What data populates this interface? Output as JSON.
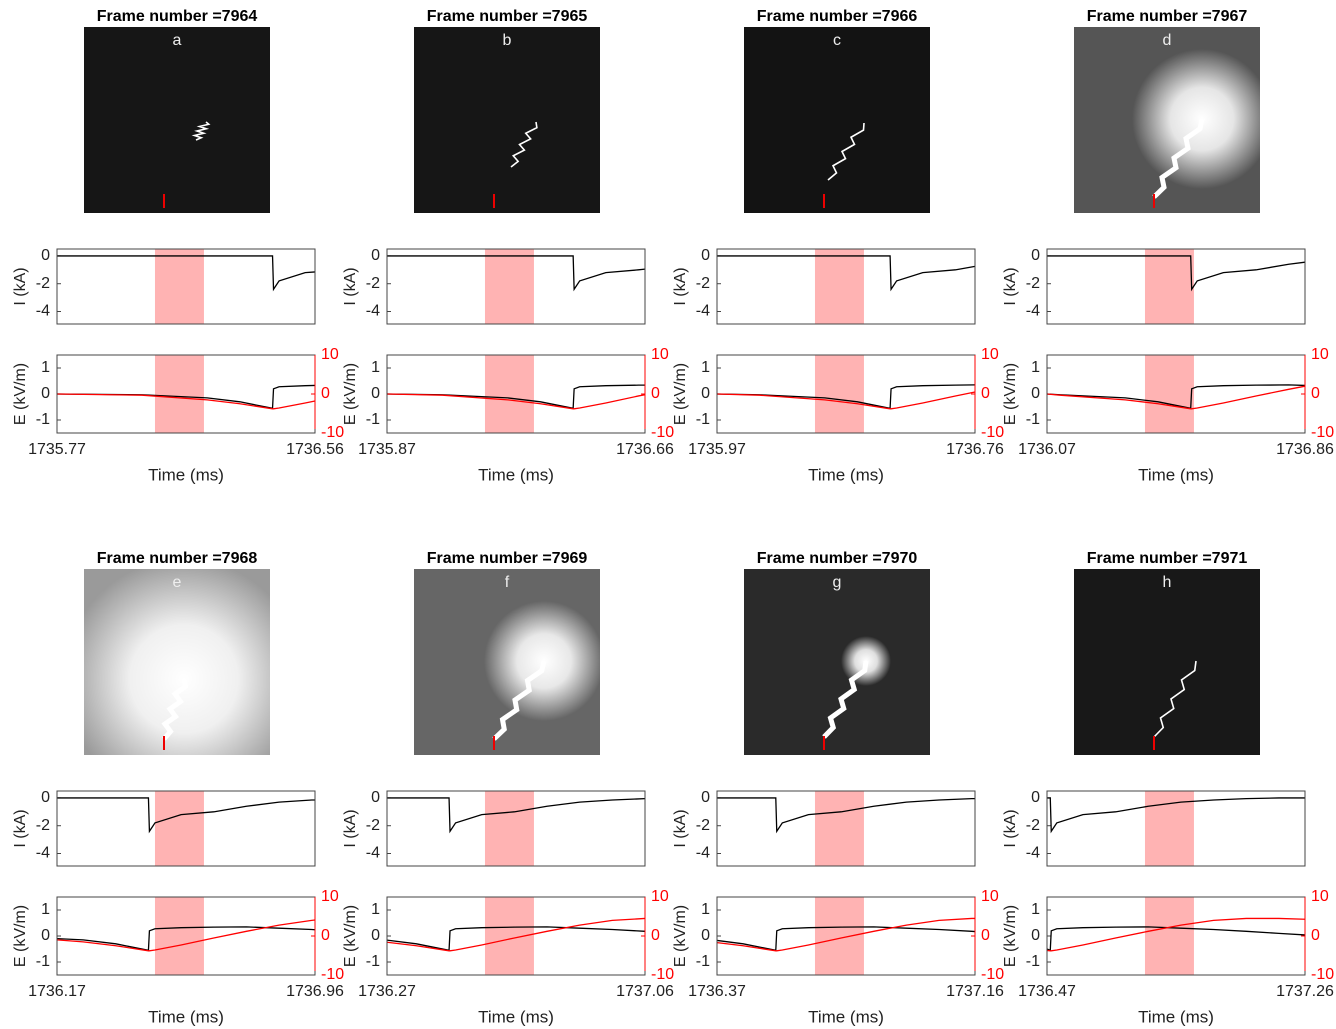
{
  "chart_data": [
    {
      "type": "line",
      "title": "Frame number =7964",
      "label": "a",
      "shade": [
        1736.07,
        1736.22
      ],
      "shade_color": "#ffb3b3",
      "xlim": [
        1735.77,
        1736.56
      ],
      "xticks": [
        1735.77,
        1736.56
      ],
      "xlabel": "Time (ms)",
      "current": {
        "ylabel": "I (kA)",
        "ylim": [
          -4.9,
          0.5
        ],
        "yticks": [
          0,
          -2,
          -4
        ],
        "color": "#000000",
        "x": [
          1735.77,
          1736.03,
          1736.23,
          1736.33,
          1736.43,
          1736.433,
          1736.45,
          1736.53,
          1736.56
        ],
        "values": [
          0,
          0,
          0,
          0,
          0,
          -2.4,
          -1.8,
          -1.2,
          -1.15
        ]
      },
      "field": {
        "ylabel": "E (kV/m)",
        "ylim": [
          -1.5,
          1.5
        ],
        "yticks": [
          -1,
          0,
          1
        ],
        "y2lim": [
          -10,
          10
        ],
        "y2ticks": [
          -10,
          0,
          10
        ],
        "x": [
          1735.77,
          1736.03,
          1736.23,
          1736.33,
          1736.43,
          1736.433,
          1736.45,
          1736.53,
          1736.56
        ],
        "series": [
          {
            "color": "#000000",
            "values": [
              0,
              -0.03,
              -0.15,
              -0.3,
              -0.55,
              0.2,
              0.28,
              0.32,
              0.33
            ]
          },
          {
            "color": "#ff0000",
            "axis": "y2",
            "values": [
              0,
              -0.3,
              -1.5,
              -2.5,
              -3.8,
              -3.8,
              -3.6,
              -2.3,
              -1.8
            ]
          }
        ]
      }
    },
    {
      "type": "line",
      "title": "Frame number =7965",
      "label": "b",
      "shade": [
        1736.17,
        1736.32
      ],
      "shade_color": "#ffb3b3",
      "xlim": [
        1735.87,
        1736.66
      ],
      "xticks": [
        1735.87,
        1736.66
      ],
      "xlabel": "Time (ms)",
      "current": {
        "ylabel": "I (kA)",
        "ylim": [
          -4.9,
          0.5
        ],
        "yticks": [
          0,
          -2,
          -4
        ],
        "color": "#000000",
        "x": [
          1735.87,
          1736.04,
          1736.24,
          1736.34,
          1736.44,
          1736.443,
          1736.46,
          1736.54,
          1736.64,
          1736.66
        ],
        "values": [
          0,
          0,
          0,
          0,
          0,
          -2.4,
          -1.8,
          -1.2,
          -1.0,
          -0.95
        ]
      },
      "field": {
        "ylabel": "E (kV/m)",
        "ylim": [
          -1.5,
          1.5
        ],
        "yticks": [
          -1,
          0,
          1
        ],
        "y2lim": [
          -10,
          10
        ],
        "y2ticks": [
          -10,
          0,
          10
        ],
        "x": [
          1735.87,
          1736.04,
          1736.24,
          1736.34,
          1736.44,
          1736.443,
          1736.46,
          1736.54,
          1736.64,
          1736.66
        ],
        "series": [
          {
            "color": "#000000",
            "values": [
              0,
              -0.03,
              -0.15,
              -0.3,
              -0.55,
              0.2,
              0.28,
              0.32,
              0.34,
              0.34
            ]
          },
          {
            "color": "#ff0000",
            "axis": "y2",
            "values": [
              0,
              -0.3,
              -1.5,
              -2.5,
              -3.8,
              -3.8,
              -3.6,
              -2.3,
              -0.5,
              -0.2
            ]
          }
        ]
      }
    },
    {
      "type": "line",
      "title": "Frame number =7966",
      "label": "c",
      "shade": [
        1736.27,
        1736.42
      ],
      "shade_color": "#ffb3b3",
      "xlim": [
        1735.97,
        1736.76
      ],
      "xticks": [
        1735.97,
        1736.76
      ],
      "xlabel": "Time (ms)",
      "current": {
        "ylabel": "I (kA)",
        "ylim": [
          -4.9,
          0.5
        ],
        "yticks": [
          0,
          -2,
          -4
        ],
        "color": "#000000",
        "x": [
          1735.97,
          1736.1,
          1736.3,
          1736.4,
          1736.5,
          1736.503,
          1736.52,
          1736.6,
          1736.7,
          1736.76
        ],
        "values": [
          0,
          0,
          0,
          0,
          0,
          -2.4,
          -1.8,
          -1.2,
          -1.0,
          -0.75
        ]
      },
      "field": {
        "ylabel": "E (kV/m)",
        "ylim": [
          -1.5,
          1.5
        ],
        "yticks": [
          -1,
          0,
          1
        ],
        "y2lim": [
          -10,
          10
        ],
        "y2ticks": [
          -10,
          0,
          10
        ],
        "x": [
          1735.97,
          1736.1,
          1736.3,
          1736.4,
          1736.5,
          1736.503,
          1736.52,
          1736.6,
          1736.7,
          1736.76
        ],
        "series": [
          {
            "color": "#000000",
            "values": [
              0,
              -0.03,
              -0.15,
              -0.3,
              -0.55,
              0.2,
              0.28,
              0.32,
              0.34,
              0.35
            ]
          },
          {
            "color": "#ff0000",
            "axis": "y2",
            "values": [
              0,
              -0.3,
              -1.5,
              -2.5,
              -3.8,
              -3.8,
              -3.6,
              -2.3,
              -0.5,
              0.5
            ]
          }
        ]
      }
    },
    {
      "type": "line",
      "title": "Frame number =7967",
      "label": "d",
      "shade": [
        1736.37,
        1736.52
      ],
      "shade_color": "#ffb3b3",
      "xlim": [
        1736.07,
        1736.86
      ],
      "xticks": [
        1736.07,
        1736.86
      ],
      "xlabel": "Time (ms)",
      "current": {
        "ylabel": "I (kA)",
        "ylim": [
          -4.9,
          0.5
        ],
        "yticks": [
          0,
          -2,
          -4
        ],
        "color": "#000000",
        "x": [
          1736.07,
          1736.11,
          1736.31,
          1736.41,
          1736.51,
          1736.513,
          1736.53,
          1736.61,
          1736.71,
          1736.81,
          1736.86
        ],
        "values": [
          0,
          0,
          0,
          0,
          0,
          -2.4,
          -1.8,
          -1.2,
          -1.0,
          -0.6,
          -0.45
        ]
      },
      "field": {
        "ylabel": "E (kV/m)",
        "ylim": [
          -1.5,
          1.5
        ],
        "yticks": [
          -1,
          0,
          1
        ],
        "y2lim": [
          -10,
          10
        ],
        "y2ticks": [
          -10,
          0,
          10
        ],
        "x": [
          1736.07,
          1736.11,
          1736.31,
          1736.41,
          1736.51,
          1736.513,
          1736.53,
          1736.61,
          1736.71,
          1736.81,
          1736.86
        ],
        "series": [
          {
            "color": "#000000",
            "values": [
              0,
              -0.03,
              -0.15,
              -0.3,
              -0.55,
              0.2,
              0.28,
              0.32,
              0.34,
              0.35,
              0.33
            ]
          },
          {
            "color": "#ff0000",
            "axis": "y2",
            "values": [
              0,
              -0.3,
              -1.5,
              -2.5,
              -3.8,
              -3.8,
              -3.6,
              -2.3,
              -0.5,
              1.2,
              2
            ]
          }
        ]
      }
    },
    {
      "type": "line",
      "title": "Frame number =7968",
      "label": "e",
      "shade": [
        1736.47,
        1736.62
      ],
      "shade_color": "#ffb3b3",
      "xlim": [
        1736.17,
        1736.96
      ],
      "xticks": [
        1736.17,
        1736.96
      ],
      "xlabel": "Time (ms)",
      "current": {
        "ylabel": "I (kA)",
        "ylim": [
          -4.9,
          0.5
        ],
        "yticks": [
          0,
          -2,
          -4
        ],
        "color": "#000000",
        "x": [
          1736.17,
          1736.25,
          1736.35,
          1736.45,
          1736.453,
          1736.47,
          1736.55,
          1736.65,
          1736.75,
          1736.85,
          1736.95,
          1736.96
        ],
        "values": [
          0,
          0,
          0,
          0,
          -2.4,
          -1.8,
          -1.2,
          -1.0,
          -0.6,
          -0.3,
          -0.15,
          -0.15
        ]
      },
      "field": {
        "ylabel": "E (kV/m)",
        "ylim": [
          -1.5,
          1.5
        ],
        "yticks": [
          -1,
          0,
          1
        ],
        "y2lim": [
          -10,
          10
        ],
        "y2ticks": [
          -10,
          0,
          10
        ],
        "x": [
          1736.17,
          1736.25,
          1736.35,
          1736.45,
          1736.453,
          1736.47,
          1736.55,
          1736.65,
          1736.75,
          1736.85,
          1736.95,
          1736.96
        ],
        "series": [
          {
            "color": "#000000",
            "values": [
              -0.1,
              -0.15,
              -0.3,
              -0.55,
              0.2,
              0.28,
              0.32,
              0.34,
              0.35,
              0.3,
              0.25,
              0.24
            ]
          },
          {
            "color": "#ff0000",
            "axis": "y2",
            "values": [
              -1,
              -1.5,
              -2.5,
              -3.8,
              -3.8,
              -3.6,
              -2.3,
              -0.5,
              1.2,
              2.8,
              4,
              4.1
            ]
          }
        ]
      }
    },
    {
      "type": "line",
      "title": "Frame number =7969",
      "label": "f",
      "shade": [
        1736.57,
        1736.72
      ],
      "shade_color": "#ffb3b3",
      "xlim": [
        1736.27,
        1737.06
      ],
      "xticks": [
        1736.27,
        1737.06
      ],
      "xlabel": "Time (ms)",
      "current": {
        "ylabel": "I (kA)",
        "ylim": [
          -4.9,
          0.5
        ],
        "yticks": [
          0,
          -2,
          -4
        ],
        "color": "#000000",
        "x": [
          1736.27,
          1736.36,
          1736.46,
          1736.463,
          1736.48,
          1736.56,
          1736.66,
          1736.76,
          1736.86,
          1736.96,
          1737.06
        ],
        "values": [
          0,
          0,
          0,
          -2.4,
          -1.8,
          -1.2,
          -1.0,
          -0.6,
          -0.3,
          -0.15,
          -0.05
        ]
      },
      "field": {
        "ylabel": "E (kV/m)",
        "ylim": [
          -1.5,
          1.5
        ],
        "yticks": [
          -1,
          0,
          1
        ],
        "y2lim": [
          -10,
          10
        ],
        "y2ticks": [
          -10,
          0,
          10
        ],
        "x": [
          1736.27,
          1736.36,
          1736.46,
          1736.463,
          1736.48,
          1736.56,
          1736.66,
          1736.76,
          1736.86,
          1736.96,
          1737.06
        ],
        "series": [
          {
            "color": "#000000",
            "values": [
              -0.16,
              -0.3,
              -0.55,
              0.2,
              0.28,
              0.32,
              0.34,
              0.35,
              0.3,
              0.25,
              0.18
            ]
          },
          {
            "color": "#ff0000",
            "axis": "y2",
            "values": [
              -1.6,
              -2.5,
              -3.8,
              -3.8,
              -3.6,
              -2.3,
              -0.5,
              1.2,
              2.8,
              4,
              4.5
            ]
          }
        ]
      }
    },
    {
      "type": "line",
      "title": "Frame number =7970",
      "label": "g",
      "shade": [
        1736.67,
        1736.82
      ],
      "shade_color": "#ffb3b3",
      "xlim": [
        1736.37,
        1737.16
      ],
      "xticks": [
        1736.37,
        1737.16
      ],
      "xlabel": "Time (ms)",
      "current": {
        "ylabel": "I (kA)",
        "ylim": [
          -4.9,
          0.5
        ],
        "yticks": [
          0,
          -2,
          -4
        ],
        "color": "#000000",
        "x": [
          1736.37,
          1736.45,
          1736.55,
          1736.553,
          1736.57,
          1736.65,
          1736.75,
          1736.85,
          1736.95,
          1737.05,
          1737.15,
          1737.16
        ],
        "values": [
          0,
          0,
          0,
          -2.4,
          -1.8,
          -1.2,
          -1.0,
          -0.6,
          -0.3,
          -0.15,
          -0.05,
          -0.05
        ]
      },
      "field": {
        "ylabel": "E (kV/m)",
        "ylim": [
          -1.5,
          1.5
        ],
        "yticks": [
          -1,
          0,
          1
        ],
        "y2lim": [
          -10,
          10
        ],
        "y2ticks": [
          -10,
          0,
          10
        ],
        "x": [
          1736.37,
          1736.45,
          1736.55,
          1736.553,
          1736.57,
          1736.65,
          1736.75,
          1736.85,
          1736.95,
          1737.05,
          1737.15,
          1737.16
        ],
        "series": [
          {
            "color": "#000000",
            "values": [
              -0.17,
              -0.3,
              -0.55,
              0.2,
              0.28,
              0.32,
              0.34,
              0.35,
              0.3,
              0.25,
              0.18,
              0.17
            ]
          },
          {
            "color": "#ff0000",
            "axis": "y2",
            "values": [
              -1.7,
              -2.5,
              -3.8,
              -3.8,
              -3.6,
              -2.3,
              -0.5,
              1.2,
              2.8,
              4,
              4.5,
              4.5
            ]
          }
        ]
      }
    },
    {
      "type": "line",
      "title": "Frame number =7971",
      "label": "h",
      "shade": [
        1736.77,
        1736.92
      ],
      "shade_color": "#ffb3b3",
      "xlim": [
        1736.47,
        1737.26
      ],
      "xticks": [
        1736.47,
        1737.26
      ],
      "xlabel": "Time (ms)",
      "current": {
        "ylabel": "I (kA)",
        "ylim": [
          -4.9,
          0.5
        ],
        "yticks": [
          0,
          -2,
          -4
        ],
        "color": "#000000",
        "x": [
          1736.47,
          1736.48,
          1736.483,
          1736.5,
          1736.58,
          1736.68,
          1736.78,
          1736.88,
          1736.98,
          1737.08,
          1737.18,
          1737.26
        ],
        "values": [
          0,
          0,
          -2.4,
          -1.8,
          -1.2,
          -1.0,
          -0.6,
          -0.3,
          -0.15,
          -0.05,
          0,
          0
        ]
      },
      "field": {
        "ylabel": "E (kV/m)",
        "ylim": [
          -1.5,
          1.5
        ],
        "yticks": [
          -1,
          0,
          1
        ],
        "y2lim": [
          -10,
          10
        ],
        "y2ticks": [
          -10,
          0,
          10
        ],
        "x": [
          1736.47,
          1736.48,
          1736.483,
          1736.5,
          1736.58,
          1736.68,
          1736.78,
          1736.88,
          1736.98,
          1737.08,
          1737.18,
          1737.26
        ],
        "series": [
          {
            "color": "#000000",
            "values": [
              -0.5,
              -0.55,
              0.2,
              0.28,
              0.32,
              0.34,
              0.35,
              0.3,
              0.25,
              0.18,
              0.1,
              0.04
            ]
          },
          {
            "color": "#ff0000",
            "axis": "y2",
            "values": [
              -3.7,
              -3.8,
              -3.8,
              -3.6,
              -2.3,
              -0.5,
              1.2,
              2.8,
              4,
              4.5,
              4.5,
              4.3
            ]
          }
        ]
      }
    }
  ]
}
